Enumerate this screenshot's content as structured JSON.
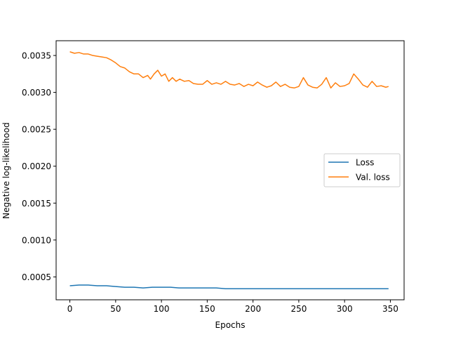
{
  "chart_data": {
    "type": "line",
    "xlabel": "Epochs",
    "ylabel": "Negative log-likelihood",
    "xlim": [
      -15,
      365
    ],
    "ylim": [
      0.00019,
      0.0037
    ],
    "x_ticks": [
      0,
      50,
      100,
      150,
      200,
      250,
      300,
      350
    ],
    "x_tick_labels": [
      "0",
      "50",
      "100",
      "150",
      "200",
      "250",
      "300",
      "350"
    ],
    "y_ticks": [
      0.0005,
      0.001,
      0.0015,
      0.002,
      0.0025,
      0.003,
      0.0035
    ],
    "y_tick_labels": [
      "0.0005",
      "0.0010",
      "0.0015",
      "0.0020",
      "0.0025",
      "0.0030",
      "0.0035"
    ],
    "grid": false,
    "legend_position": "center-right",
    "series": [
      {
        "name": "Loss",
        "color": "#1f77b4",
        "x": [
          0,
          10,
          20,
          30,
          40,
          50,
          60,
          70,
          80,
          90,
          100,
          110,
          120,
          130,
          140,
          150,
          160,
          170,
          180,
          190,
          200,
          210,
          220,
          230,
          240,
          250,
          260,
          270,
          280,
          290,
          300,
          310,
          320,
          330,
          340,
          348
        ],
        "y": [
          0.00038,
          0.00039,
          0.00039,
          0.00038,
          0.00038,
          0.00037,
          0.00036,
          0.00036,
          0.00035,
          0.00036,
          0.00036,
          0.00036,
          0.00035,
          0.00035,
          0.00035,
          0.00035,
          0.00035,
          0.00034,
          0.00034,
          0.00034,
          0.00034,
          0.00034,
          0.00034,
          0.00034,
          0.00034,
          0.00034,
          0.00034,
          0.00034,
          0.00034,
          0.00034,
          0.00034,
          0.00034,
          0.00034,
          0.00034,
          0.00034,
          0.00034
        ]
      },
      {
        "name": "Val. loss",
        "color": "#ff7f0e",
        "x": [
          0,
          5,
          10,
          15,
          20,
          25,
          30,
          35,
          40,
          45,
          50,
          55,
          60,
          65,
          70,
          75,
          80,
          85,
          88,
          92,
          96,
          100,
          104,
          108,
          112,
          116,
          120,
          125,
          130,
          135,
          140,
          145,
          150,
          155,
          160,
          165,
          170,
          175,
          180,
          185,
          190,
          195,
          200,
          205,
          210,
          215,
          220,
          225,
          230,
          235,
          240,
          245,
          250,
          255,
          260,
          265,
          270,
          275,
          280,
          285,
          290,
          295,
          300,
          305,
          310,
          315,
          320,
          325,
          330,
          335,
          340,
          345,
          348
        ],
        "y": [
          0.00355,
          0.00353,
          0.00354,
          0.00352,
          0.00352,
          0.0035,
          0.00349,
          0.00348,
          0.00347,
          0.00344,
          0.0034,
          0.00335,
          0.00333,
          0.00328,
          0.00325,
          0.00325,
          0.0032,
          0.00323,
          0.00318,
          0.00325,
          0.0033,
          0.00322,
          0.00325,
          0.00315,
          0.0032,
          0.00315,
          0.00318,
          0.00315,
          0.00316,
          0.00312,
          0.00311,
          0.00311,
          0.00316,
          0.00311,
          0.00313,
          0.00311,
          0.00315,
          0.00311,
          0.0031,
          0.00312,
          0.00308,
          0.00311,
          0.00309,
          0.00314,
          0.0031,
          0.00307,
          0.00309,
          0.00314,
          0.00308,
          0.00311,
          0.00307,
          0.00306,
          0.00308,
          0.0032,
          0.0031,
          0.00307,
          0.00306,
          0.00311,
          0.0032,
          0.00306,
          0.00313,
          0.00308,
          0.00309,
          0.00312,
          0.00325,
          0.00318,
          0.0031,
          0.00307,
          0.00315,
          0.00308,
          0.00309,
          0.00307,
          0.00308
        ]
      }
    ]
  }
}
